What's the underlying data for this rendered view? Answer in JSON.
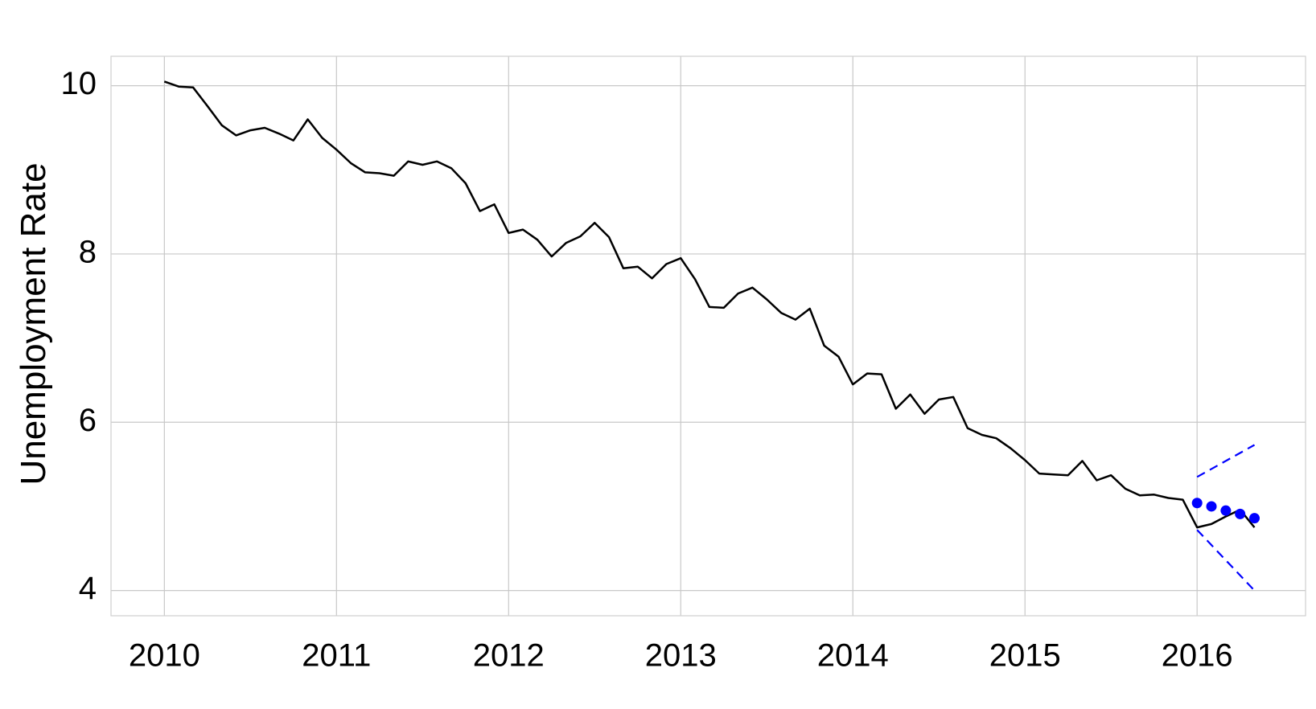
{
  "chart_data": {
    "type": "line",
    "title": "",
    "xlabel": "",
    "ylabel": "Unemployment Rate",
    "grid": true,
    "legend": "none",
    "x_unit": "year",
    "xlim": [
      2009.69,
      2016.63
    ],
    "ylim": [
      3.7,
      10.35
    ],
    "x_ticks": [
      2010,
      2011,
      2012,
      2013,
      2014,
      2015,
      2016
    ],
    "x_tick_labels": [
      "2010",
      "2011",
      "2012",
      "2013",
      "2014",
      "2015",
      "2016"
    ],
    "y_ticks": [
      4,
      6,
      8,
      10
    ],
    "y_tick_labels": [
      "4",
      "6",
      "8",
      "10"
    ],
    "series": [
      {
        "key": "actual",
        "style": "line",
        "color": "#000000",
        "x": [
          2010.0,
          2010.0833,
          2010.1667,
          2010.25,
          2010.3333,
          2010.4167,
          2010.5,
          2010.5833,
          2010.6667,
          2010.75,
          2010.8333,
          2010.9167,
          2011.0,
          2011.0833,
          2011.1667,
          2011.25,
          2011.3333,
          2011.4167,
          2011.5,
          2011.5833,
          2011.6667,
          2011.75,
          2011.8333,
          2011.9167,
          2012.0,
          2012.0833,
          2012.1667,
          2012.25,
          2012.3333,
          2012.4167,
          2012.5,
          2012.5833,
          2012.6667,
          2012.75,
          2012.8333,
          2012.9167,
          2013.0,
          2013.0833,
          2013.1667,
          2013.25,
          2013.3333,
          2013.4167,
          2013.5,
          2013.5833,
          2013.6667,
          2013.75,
          2013.8333,
          2013.9167,
          2014.0,
          2014.0833,
          2014.1667,
          2014.25,
          2014.3333,
          2014.4167,
          2014.5,
          2014.5833,
          2014.6667,
          2014.75,
          2014.8333,
          2014.9167,
          2015.0,
          2015.0833,
          2015.1667,
          2015.25,
          2015.3333,
          2015.4167,
          2015.5,
          2015.5833,
          2015.6667,
          2015.75,
          2015.8333,
          2015.9167,
          2016.0,
          2016.0833,
          2016.1667,
          2016.25,
          2016.3333
        ],
        "values": [
          10.05,
          9.99,
          9.98,
          9.76,
          9.53,
          9.41,
          9.47,
          9.5,
          9.43,
          9.35,
          9.6,
          9.38,
          9.24,
          9.08,
          8.97,
          8.96,
          8.93,
          9.1,
          9.06,
          9.1,
          9.02,
          8.84,
          8.51,
          8.59,
          8.25,
          8.29,
          8.17,
          7.97,
          8.13,
          8.21,
          8.37,
          8.2,
          7.83,
          7.85,
          7.71,
          7.88,
          7.95,
          7.7,
          7.37,
          7.36,
          7.53,
          7.6,
          7.46,
          7.3,
          7.22,
          7.35,
          6.91,
          6.78,
          6.45,
          6.58,
          6.57,
          6.16,
          6.33,
          6.1,
          6.27,
          6.3,
          5.93,
          5.85,
          5.81,
          5.69,
          5.55,
          5.39,
          5.38,
          5.37,
          5.54,
          5.31,
          5.37,
          5.21,
          5.13,
          5.14,
          5.1,
          5.08,
          4.75,
          4.79,
          4.88,
          4.96,
          4.75
        ]
      },
      {
        "key": "forecast",
        "style": "markers",
        "color": "#0000ff",
        "x": [
          2016.0,
          2016.0833,
          2016.1667,
          2016.25,
          2016.3333
        ],
        "values": [
          5.04,
          5.0,
          4.95,
          4.91,
          4.86
        ]
      },
      {
        "key": "upper-bound",
        "style": "dashed",
        "color": "#0000ff",
        "x": [
          2016.0,
          2016.3333
        ],
        "values": [
          5.35,
          5.73
        ]
      },
      {
        "key": "lower-bound",
        "style": "dashed",
        "color": "#0000ff",
        "x": [
          2016.0,
          2016.3333
        ],
        "values": [
          4.72,
          4.0
        ]
      }
    ]
  }
}
